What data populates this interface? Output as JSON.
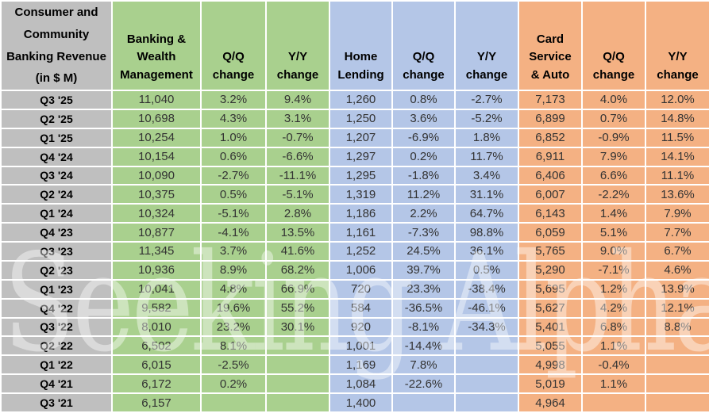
{
  "table": {
    "corner_header": "Consumer and\nCommunity\nBanking Revenue\n(in $ M)",
    "headers": [
      "Banking &\nWealth\nManagement",
      "Q/Q\nchange",
      "Y/Y\nchange",
      "Home\nLending",
      "Q/Q\nchange",
      "Y/Y\nchange",
      "Card\nService\n& Auto",
      "Q/Q\nchange",
      "Y/Y\nchange"
    ]
  },
  "watermark": {
    "text": "Seeking Alpha",
    "symbol": "α"
  },
  "colors": {
    "label_column": "#bfbfbf",
    "banking_wealth_group": "#a9d08e",
    "home_lending_group": "#b4c6e7",
    "card_auto_group": "#f4b183",
    "grid": "#ffffff",
    "header_text": "#000000",
    "value_text": "#333333"
  },
  "chart_data": {
    "type": "table",
    "title": "Consumer and Community Banking Revenue (in $ M)",
    "column_groups": [
      {
        "label": "Banking & Wealth Management",
        "color": "#a9d08e"
      },
      {
        "label": "Home Lending",
        "color": "#b4c6e7"
      },
      {
        "label": "Card Service & Auto",
        "color": "#f4b183"
      }
    ],
    "columns": [
      "Quarter",
      "Banking & Wealth Management",
      "Q/Q change",
      "Y/Y change",
      "Home Lending",
      "Q/Q change",
      "Y/Y change",
      "Card Service & Auto",
      "Q/Q change",
      "Y/Y change"
    ],
    "rows": [
      [
        "Q3 '25",
        "11,040",
        "3.2%",
        "9.4%",
        "1,260",
        "0.8%",
        "-2.7%",
        "7,173",
        "4.0%",
        "12.0%"
      ],
      [
        "Q2 '25",
        "10,698",
        "4.3%",
        "3.1%",
        "1,250",
        "3.6%",
        "-5.2%",
        "6,899",
        "0.7%",
        "14.8%"
      ],
      [
        "Q1 '25",
        "10,254",
        "1.0%",
        "-0.7%",
        "1,207",
        "-6.9%",
        "1.8%",
        "6,852",
        "-0.9%",
        "11.5%"
      ],
      [
        "Q4 '24",
        "10,154",
        "0.6%",
        "-6.6%",
        "1,297",
        "0.2%",
        "11.7%",
        "6,911",
        "7.9%",
        "14.1%"
      ],
      [
        "Q3 '24",
        "10,090",
        "-2.7%",
        "-11.1%",
        "1,295",
        "-1.8%",
        "3.4%",
        "6,406",
        "6.6%",
        "11.1%"
      ],
      [
        "Q2 '24",
        "10,375",
        "0.5%",
        "-5.1%",
        "1,319",
        "11.2%",
        "31.1%",
        "6,007",
        "-2.2%",
        "13.6%"
      ],
      [
        "Q1 '24",
        "10,324",
        "-5.1%",
        "2.8%",
        "1,186",
        "2.2%",
        "64.7%",
        "6,143",
        "1.4%",
        "7.9%"
      ],
      [
        "Q4 '23",
        "10,877",
        "-4.1%",
        "13.5%",
        "1,161",
        "-7.3%",
        "98.8%",
        "6,059",
        "5.1%",
        "7.7%"
      ],
      [
        "Q3 '23",
        "11,345",
        "3.7%",
        "41.6%",
        "1,252",
        "24.5%",
        "36.1%",
        "5,765",
        "9.0%",
        "6.7%"
      ],
      [
        "Q2 '23",
        "10,936",
        "8.9%",
        "68.2%",
        "1,006",
        "39.7%",
        "0.5%",
        "5,290",
        "-7.1%",
        "4.6%"
      ],
      [
        "Q1 '23",
        "10,041",
        "4.8%",
        "66.9%",
        "720",
        "23.3%",
        "-38.4%",
        "5,695",
        "1.2%",
        "13.9%"
      ],
      [
        "Q4 '22",
        "9,582",
        "19.6%",
        "55.2%",
        "584",
        "-36.5%",
        "-46.1%",
        "5,627",
        "4.2%",
        "12.1%"
      ],
      [
        "Q3 '22",
        "8,010",
        "23.2%",
        "30.1%",
        "920",
        "-8.1%",
        "-34.3%",
        "5,401",
        "6.8%",
        "8.8%"
      ],
      [
        "Q2 '22",
        "6,502",
        "8.1%",
        "",
        "1,001",
        "-14.4%",
        "",
        "5,055",
        "1.1%",
        ""
      ],
      [
        "Q1 '22",
        "6,015",
        "-2.5%",
        "",
        "1,169",
        "7.8%",
        "",
        "4,998",
        "-0.4%",
        ""
      ],
      [
        "Q4 '21",
        "6,172",
        "0.2%",
        "",
        "1,084",
        "-22.6%",
        "",
        "5,019",
        "1.1%",
        ""
      ],
      [
        "Q3 '21",
        "6,157",
        "",
        "",
        "1,400",
        "",
        "",
        "4,964",
        "",
        ""
      ]
    ]
  }
}
